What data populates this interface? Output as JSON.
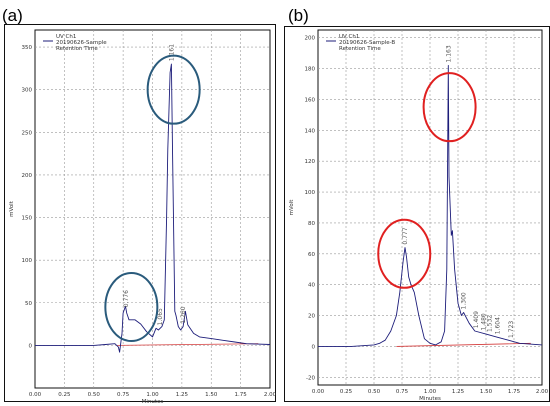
{
  "panels": {
    "a": {
      "label": "(a)"
    },
    "b": {
      "label": "(b)"
    }
  },
  "colors": {
    "trace": "#1d1d7a",
    "baseline": "#d43a3a",
    "circle_a": "#2a5b7c",
    "circle_b": "#e02020"
  },
  "chart_data": [
    {
      "type": "line",
      "xlabel": "Minutes",
      "ylabel": "mVolt",
      "xlim": [
        0.0,
        2.0
      ],
      "ylim": [
        -50,
        370
      ],
      "grid": true,
      "x_ticks": [
        "0.00",
        "0.25",
        "0.50",
        "0.75",
        "1.00",
        "1.25",
        "1.50",
        "1.75",
        "2.00"
      ],
      "y_ticks": [
        "0",
        "50",
        "100",
        "150",
        "200",
        "250",
        "300",
        "350"
      ],
      "legend": {
        "placement": "top-left",
        "entries": [
          "UV Ch1",
          "20190626-Sample",
          "Retention Time"
        ]
      },
      "series": [
        {
          "name": "20190626-Sample",
          "x": [
            0.0,
            0.3,
            0.5,
            0.6,
            0.68,
            0.71,
            0.72,
            0.74,
            0.75,
            0.77,
            0.78,
            0.8,
            0.85,
            0.9,
            0.95,
            1.0,
            1.03,
            1.05,
            1.08,
            1.1,
            1.12,
            1.13,
            1.15,
            1.161,
            1.17,
            1.19,
            1.2,
            1.22,
            1.24,
            1.26,
            1.28,
            1.3,
            1.35,
            1.4,
            1.5,
            1.6,
            1.7,
            1.8,
            2.0
          ],
          "y": [
            0,
            0,
            0,
            1,
            2,
            -2,
            -8,
            14,
            38,
            46,
            38,
            30,
            30,
            25,
            16,
            10,
            20,
            18,
            22,
            30,
            150,
            230,
            320,
            330,
            230,
            40,
            35,
            22,
            18,
            22,
            40,
            24,
            14,
            10,
            8,
            6,
            4,
            2,
            1
          ]
        }
      ],
      "peak_labels": [
        {
          "x": 0.776,
          "text": "0.776"
        },
        {
          "x": 1.161,
          "text": "1.161"
        },
        {
          "x": 1.26,
          "text": "1.260"
        },
        {
          "x": 1.065,
          "text": "1.065"
        }
      ],
      "highlights": [
        {
          "cx": 1.18,
          "cy": 300
        },
        {
          "cx": 0.82,
          "cy": 45
        }
      ]
    },
    {
      "type": "line",
      "xlabel": "Minutes",
      "ylabel": "mVolt",
      "xlim": [
        0.0,
        2.0
      ],
      "ylim": [
        -25,
        205
      ],
      "grid": true,
      "x_ticks": [
        "0.00",
        "0.25",
        "0.50",
        "0.75",
        "1.00",
        "1.25",
        "1.50",
        "1.75",
        "2.00"
      ],
      "y_ticks": [
        "-20",
        "0",
        "20",
        "40",
        "60",
        "80",
        "100",
        "120",
        "140",
        "160",
        "180",
        "200"
      ],
      "legend": {
        "placement": "top-left",
        "entries": [
          "UV Ch1",
          "20190626-Sample-B",
          "Retention Time"
        ]
      },
      "series": [
        {
          "name": "20190626-Sample-B",
          "x": [
            0.0,
            0.3,
            0.5,
            0.55,
            0.6,
            0.65,
            0.7,
            0.73,
            0.76,
            0.777,
            0.79,
            0.81,
            0.83,
            0.86,
            0.9,
            0.95,
            1.0,
            1.05,
            1.1,
            1.13,
            1.15,
            1.163,
            1.17,
            1.19,
            1.2,
            1.22,
            1.25,
            1.28,
            1.3,
            1.35,
            1.4,
            1.5,
            1.6,
            1.7,
            1.8,
            2.0
          ],
          "y": [
            0,
            0,
            1,
            2,
            4,
            10,
            20,
            35,
            55,
            64,
            58,
            45,
            40,
            35,
            20,
            5,
            2,
            1,
            3,
            10,
            50,
            182,
            110,
            72,
            75,
            50,
            28,
            20,
            22,
            15,
            10,
            8,
            6,
            4,
            2,
            1
          ]
        }
      ],
      "peak_labels": [
        {
          "x": 0.777,
          "text": "0.777"
        },
        {
          "x": 1.163,
          "text": "1.163"
        },
        {
          "x": 1.3,
          "text": "1.300"
        },
        {
          "x": 1.409,
          "text": "1.409"
        },
        {
          "x": 1.48,
          "text": "1.480"
        },
        {
          "x": 1.532,
          "text": "1.532"
        },
        {
          "x": 1.604,
          "text": "1.604"
        },
        {
          "x": 1.723,
          "text": "1.723"
        }
      ],
      "highlights": [
        {
          "cx": 1.175,
          "cy": 155
        },
        {
          "cx": 0.77,
          "cy": 60
        }
      ]
    }
  ]
}
